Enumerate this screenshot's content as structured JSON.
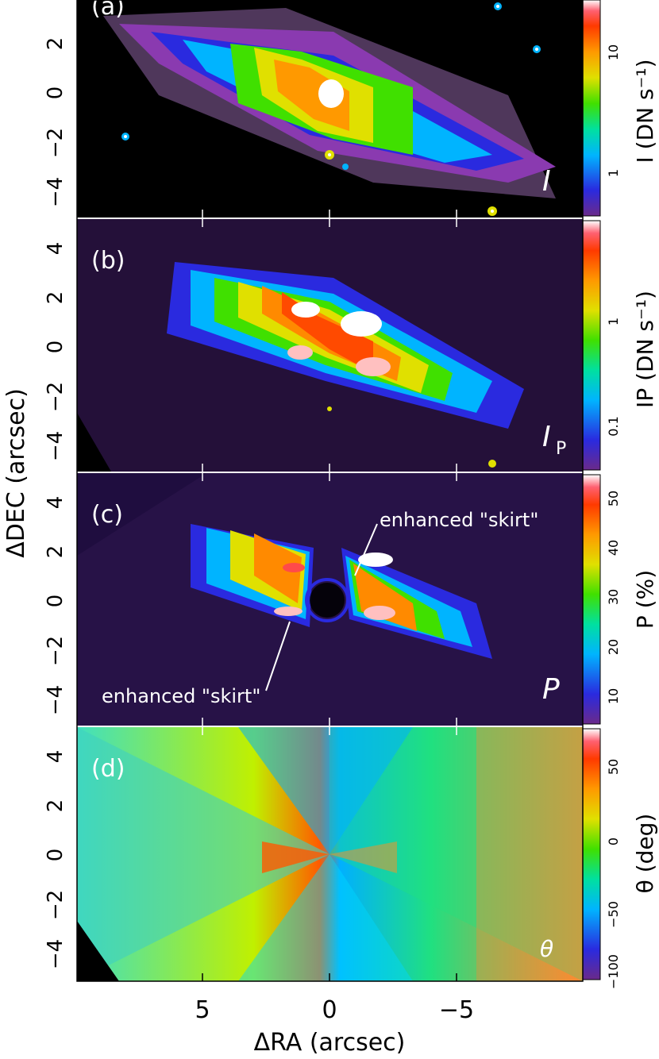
{
  "figure": {
    "x_axis": {
      "label": "ΔRA (arcsec)",
      "ticks": [
        "5",
        "0",
        "−5"
      ]
    },
    "y_axis": {
      "label": "ΔDEC (arcsec)",
      "ticks": [
        "4",
        "2",
        "0",
        "−2",
        "−4"
      ]
    }
  },
  "panels": [
    {
      "letter": "(a)",
      "map_label": "I",
      "colorbar": {
        "title": "I (DN s⁻¹)",
        "scale": "log",
        "ticks": [
          "10",
          "1"
        ]
      },
      "annotations": []
    },
    {
      "letter": "(b)",
      "map_label": "I",
      "map_label_sub": "P",
      "colorbar": {
        "title": "IP (DN s⁻¹)",
        "scale": "log",
        "ticks": [
          "1",
          "0.1"
        ]
      },
      "annotations": []
    },
    {
      "letter": "(c)",
      "map_label": "P",
      "colorbar": {
        "title": "P (%)",
        "scale": "linear",
        "ticks": [
          "50",
          "40",
          "30",
          "20",
          "10"
        ]
      },
      "annotations": [
        "enhanced \"skirt\"",
        "enhanced \"skirt\""
      ]
    },
    {
      "letter": "(d)",
      "map_label": "θ",
      "colorbar": {
        "title": "θ (deg)",
        "scale": "linear",
        "ticks": [
          "50",
          "0",
          "−50",
          "−100"
        ]
      },
      "annotations": []
    }
  ],
  "colors": {
    "background": "#000000",
    "sky_noise": "#7a3aa0",
    "colormap": [
      "#6a2a8a",
      "#2a2adf",
      "#00b4ff",
      "#00e0a0",
      "#40e000",
      "#e0e000",
      "#ff9900",
      "#ff3a00",
      "#ff6070",
      "#ffffff"
    ]
  }
}
